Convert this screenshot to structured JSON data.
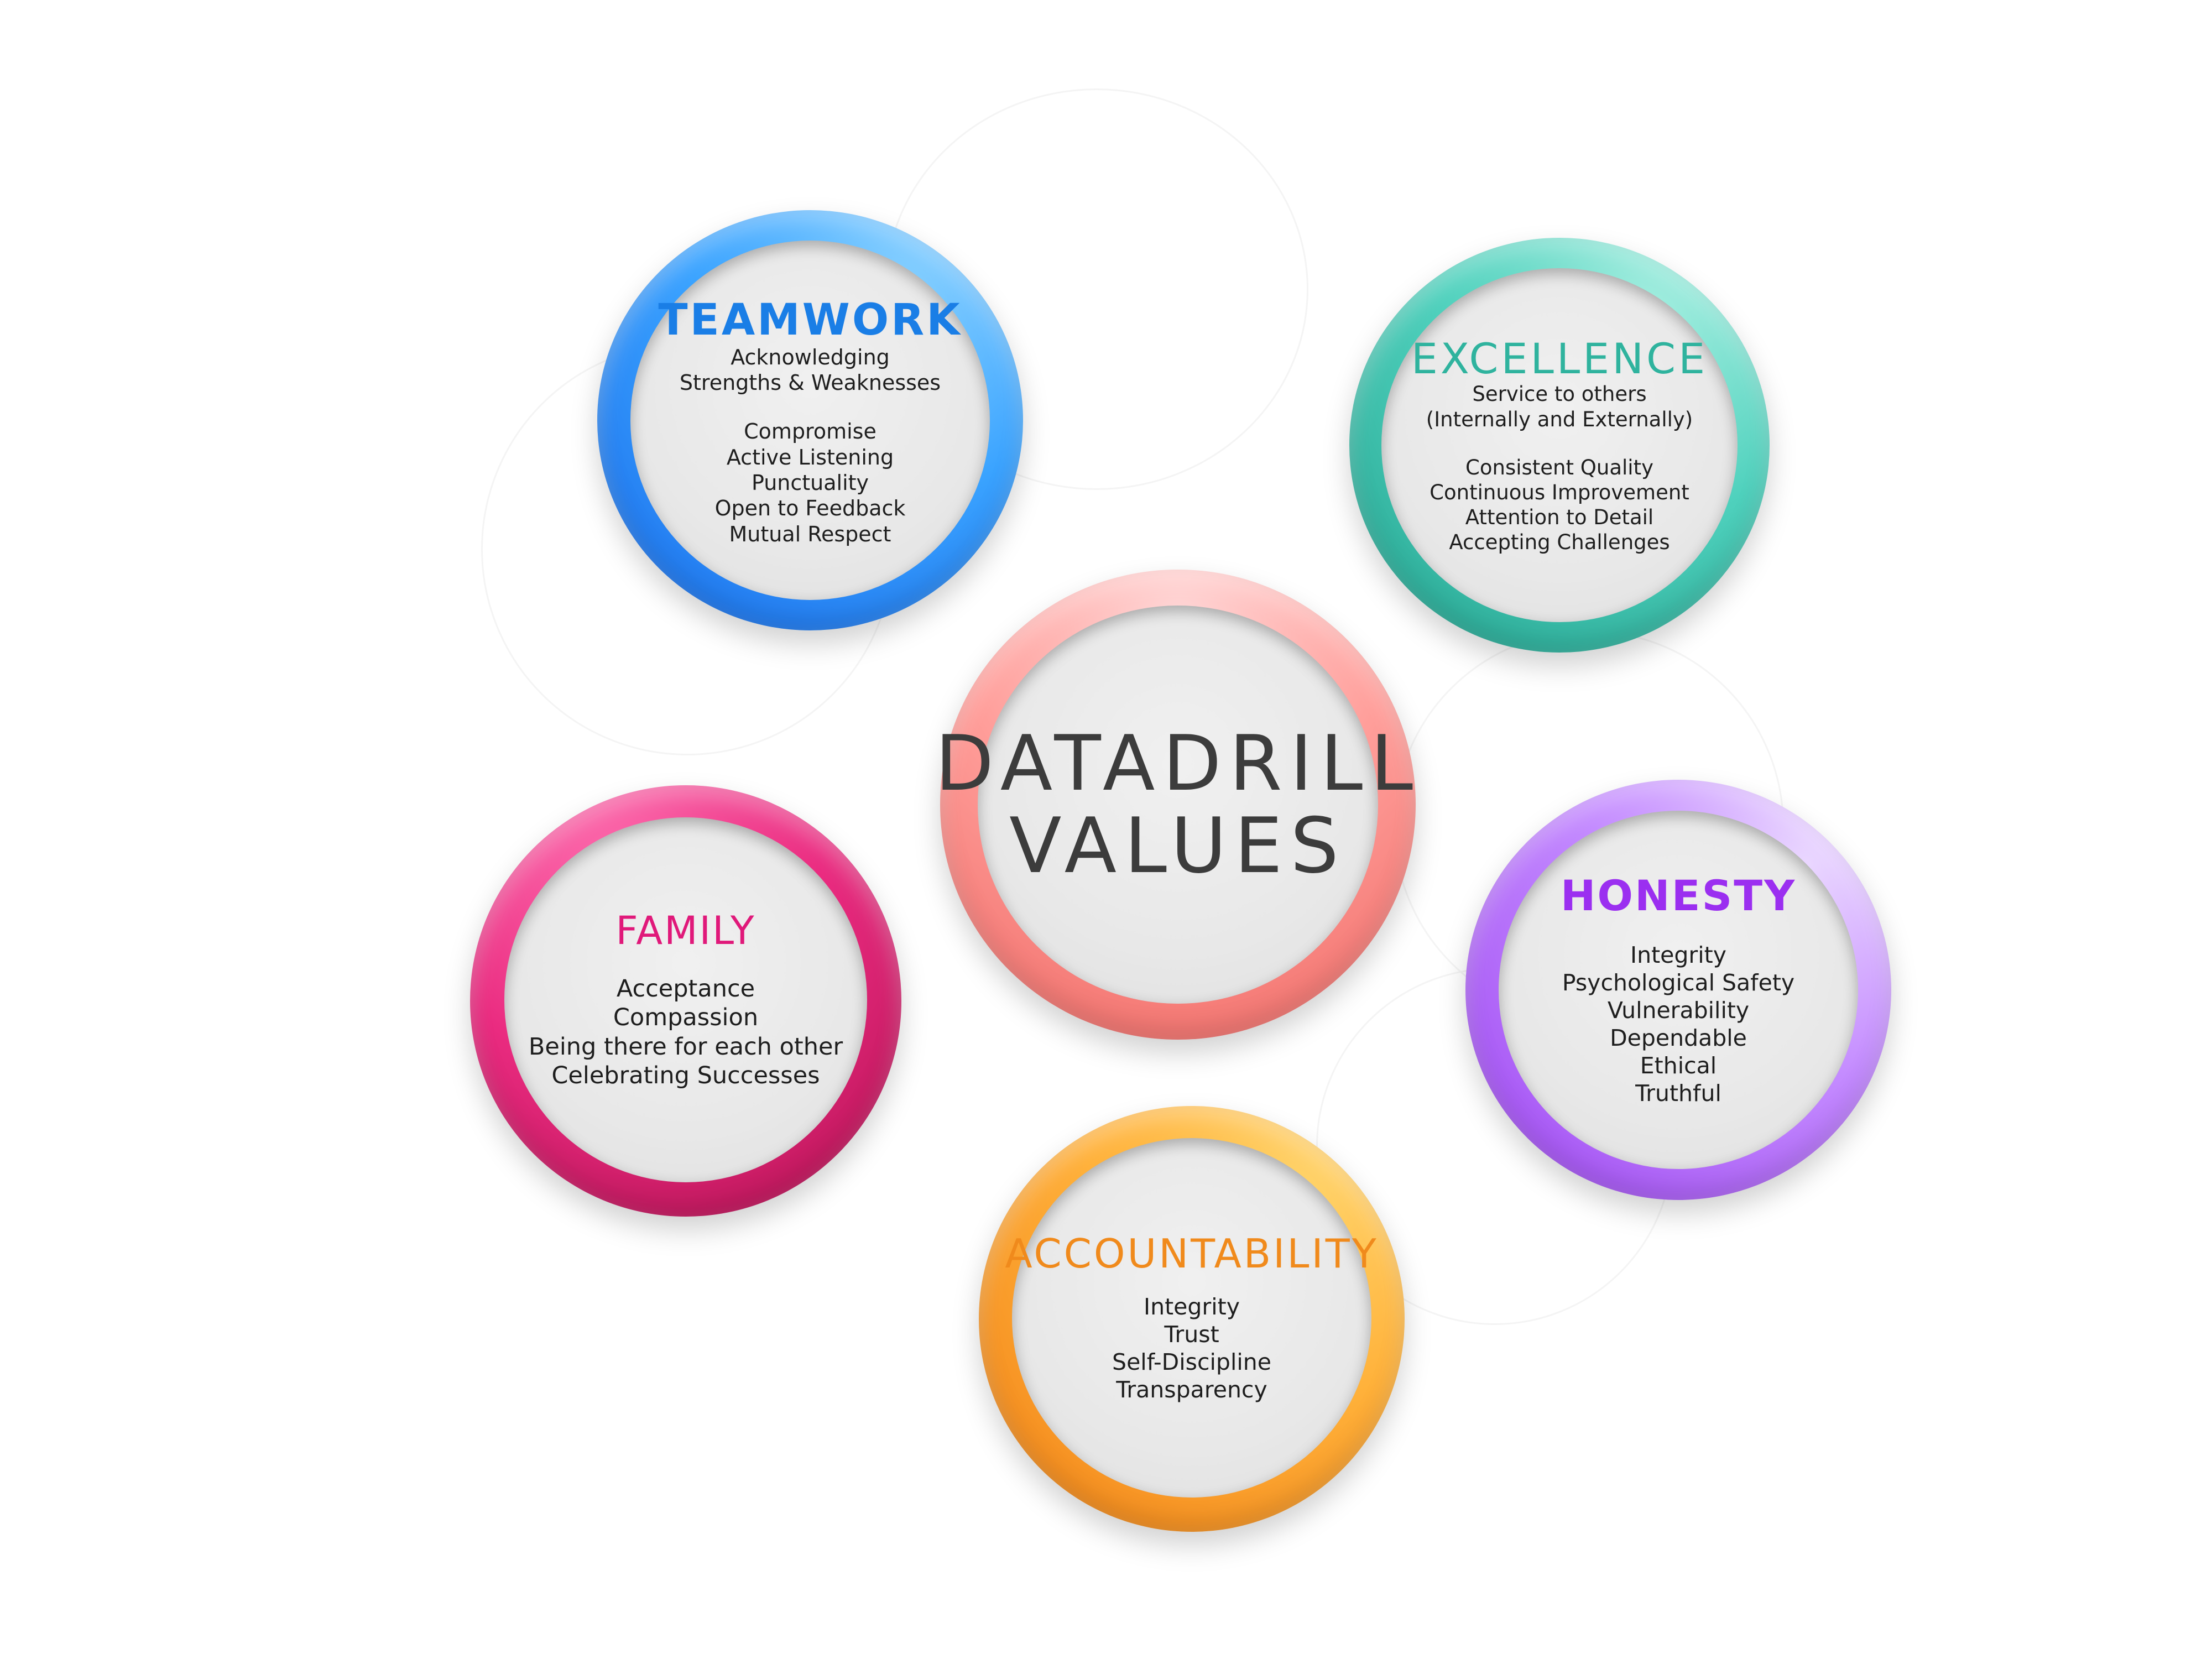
{
  "center": {
    "line1": "DATADRILL",
    "line2": "VALUES"
  },
  "teamwork": {
    "title": "TEAMWORK",
    "color": "#1a7ee6",
    "group1": [
      "Acknowledging",
      "Strengths & Weaknesses"
    ],
    "group2": [
      "Compromise",
      "Active Listening",
      "Punctuality",
      "Open to Feedback",
      "Mutual Respect"
    ]
  },
  "excellence": {
    "title": "EXCELLENCE",
    "color": "#2fb39e",
    "group1": [
      "Service to others",
      "(Internally and Externally)"
    ],
    "group2": [
      "Consistent Quality",
      "Continuous Improvement",
      "Attention to Detail",
      "Accepting Challenges"
    ]
  },
  "family": {
    "title": "FAMILY",
    "color": "#e0197a",
    "items": [
      "Acceptance",
      "Compassion",
      "Being there for each other",
      "Celebrating Successes"
    ]
  },
  "honesty": {
    "title": "HONESTY",
    "color": "#9b2ff0",
    "items": [
      "Integrity",
      "Psychological Safety",
      "Vulnerability",
      "Dependable",
      "Ethical",
      "Truthful"
    ]
  },
  "accountability": {
    "title": "ACCOUNTABILITY",
    "color": "#f08a1c",
    "items": [
      "Integrity",
      "Trust",
      "Self-Discipline",
      "Transparency"
    ]
  }
}
